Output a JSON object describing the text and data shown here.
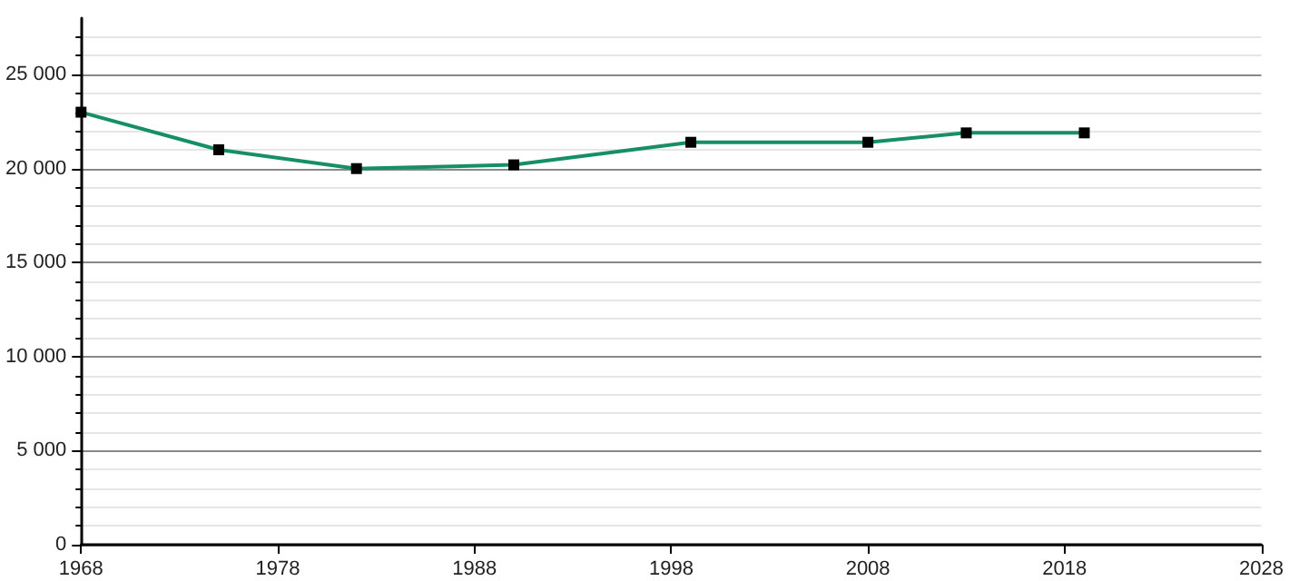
{
  "chart_data": {
    "type": "line",
    "x": [
      1968,
      1975,
      1982,
      1990,
      1999,
      2008,
      2013,
      2019
    ],
    "series": [
      {
        "color": "#168f66",
        "values": [
          23000,
          21000,
          20000,
          20200,
          21400,
          21400,
          21900,
          21900
        ]
      }
    ],
    "xlim": [
      1968,
      2028
    ],
    "xticks": [
      1968,
      1978,
      1988,
      1998,
      2008,
      2018,
      2028
    ],
    "ylim": [
      0,
      28000
    ],
    "yticks": [
      0,
      {
        "value": 5000,
        "label": "5 000"
      },
      {
        "value": 10000,
        "label": "10 000"
      },
      {
        "value": 15000,
        "label": "15 000"
      },
      {
        "value": 20000,
        "label": "20 000"
      },
      {
        "value": 25000,
        "label": "25 000"
      }
    ],
    "grid": "y",
    "marker": "square"
  }
}
